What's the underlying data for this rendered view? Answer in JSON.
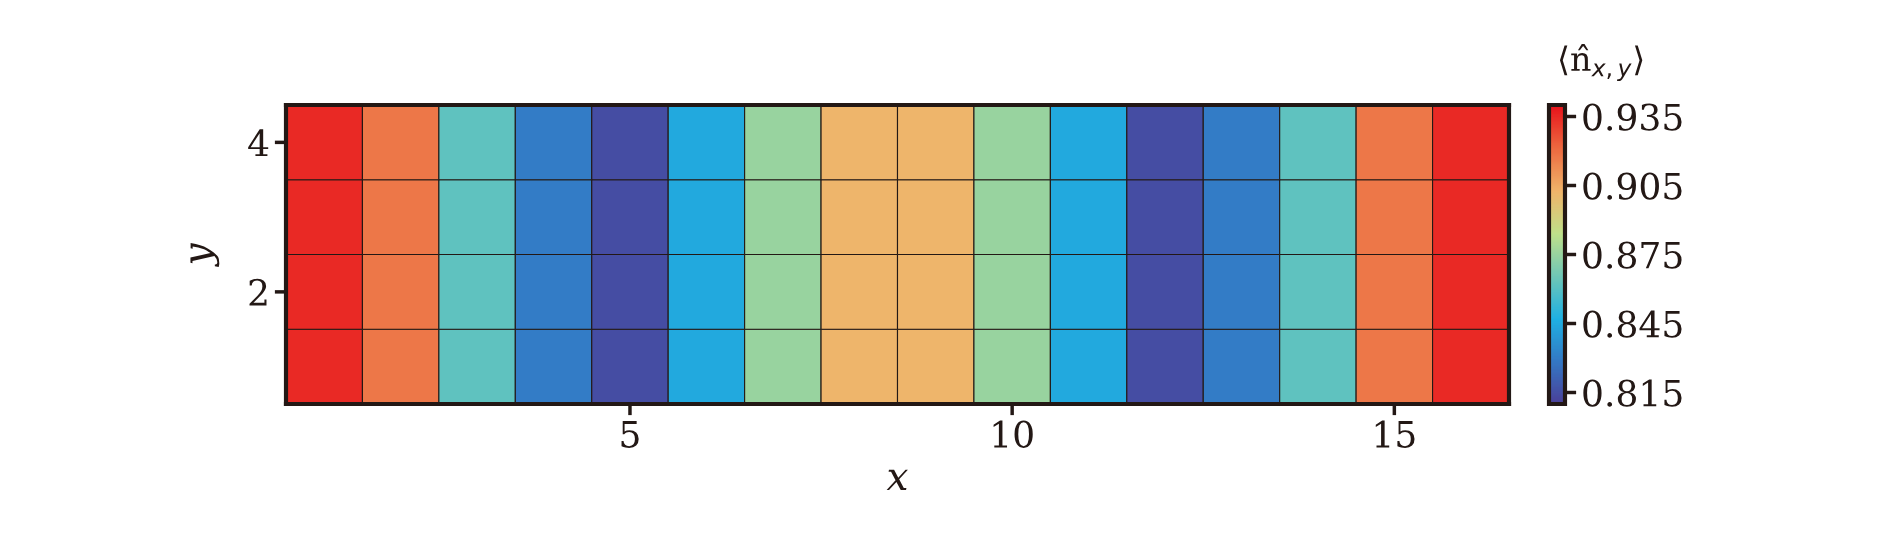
{
  "chart_data": {
    "type": "heatmap",
    "xlabel": "x",
    "ylabel": "y",
    "clabel": "⟨n̂$_{x,y}$⟩",
    "x": [
      1,
      2,
      3,
      4,
      5,
      6,
      7,
      8,
      9,
      10,
      11,
      12,
      13,
      14,
      15,
      16
    ],
    "y": [
      1,
      2,
      3,
      4
    ],
    "cells": [
      [
        0.935,
        0.918,
        0.862,
        0.83,
        0.815,
        0.845,
        0.875,
        0.902,
        0.902,
        0.875,
        0.845,
        0.815,
        0.83,
        0.862,
        0.918,
        0.935
      ],
      [
        0.935,
        0.918,
        0.862,
        0.83,
        0.815,
        0.845,
        0.875,
        0.902,
        0.902,
        0.875,
        0.845,
        0.815,
        0.83,
        0.862,
        0.918,
        0.935
      ],
      [
        0.935,
        0.918,
        0.862,
        0.83,
        0.815,
        0.845,
        0.875,
        0.902,
        0.902,
        0.875,
        0.845,
        0.815,
        0.83,
        0.862,
        0.918,
        0.935
      ],
      [
        0.935,
        0.918,
        0.862,
        0.83,
        0.815,
        0.845,
        0.875,
        0.902,
        0.902,
        0.875,
        0.845,
        0.815,
        0.83,
        0.862,
        0.918,
        0.935
      ]
    ],
    "xlim": [
      0.5,
      16.5
    ],
    "ylim": [
      0.5,
      4.5
    ],
    "xticks": [
      5,
      10,
      15
    ],
    "yticks": [
      2,
      4
    ],
    "clim": [
      0.81,
      0.94
    ],
    "cticks": [
      0.815,
      0.845,
      0.875,
      0.905,
      0.935
    ]
  }
}
